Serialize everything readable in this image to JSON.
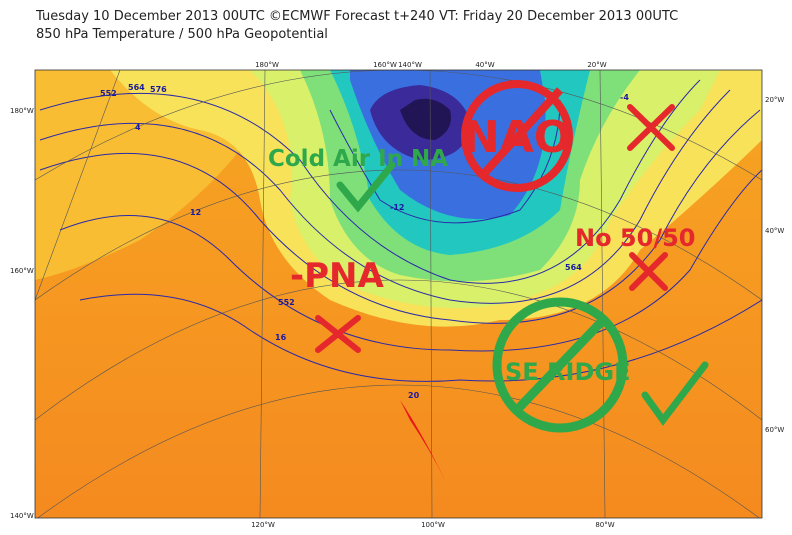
{
  "header": {
    "line1": "Tuesday 10 December 2013 00UTC ©ECMWF Forecast t+240 VT: Friday 20 December 2013 00UTC",
    "line2": "850 hPa Temperature / 500 hPa Geopotential"
  },
  "map": {
    "top_labels": [
      "180°W",
      "160°W",
      "140°W",
      "40°W",
      "20°W"
    ],
    "bottom_labels": [
      "120°W",
      "100°W",
      "80°W"
    ],
    "left_labels": [
      "180°W",
      "160°W",
      "140°W"
    ],
    "right_labels": [
      "20°W",
      "40°W",
      "60°W"
    ],
    "contour_labels": [
      "552",
      "564",
      "576",
      "4",
      "12",
      "16",
      "20",
      "-4",
      "-12",
      "552",
      "564"
    ],
    "annotations": {
      "nao": "NAO",
      "cold_air": "Cold Air In NA",
      "pna": "-PNA",
      "no_5050": "No 50/50",
      "se_ridge": "SE RIDGE"
    }
  }
}
